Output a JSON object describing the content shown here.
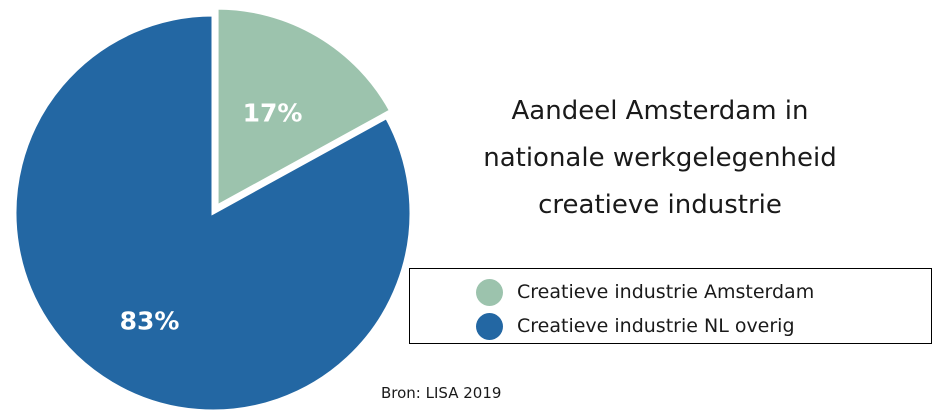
{
  "chart_data": {
    "type": "pie",
    "title_lines": [
      "Aandeel Amsterdam in",
      "nationale werkgelegenheid",
      "creatieve industrie"
    ],
    "slices": [
      {
        "name": "Creatieve industrie Amsterdam",
        "value": 17,
        "label": "17%",
        "color": "#9cc3ad",
        "exploded": true
      },
      {
        "name": "Creatieve industrie NL overig",
        "value": 83,
        "label": "83%",
        "color": "#2367a3",
        "exploded": false
      }
    ],
    "legend_position": "bottom-right",
    "source": "Bron: LISA 2019"
  }
}
